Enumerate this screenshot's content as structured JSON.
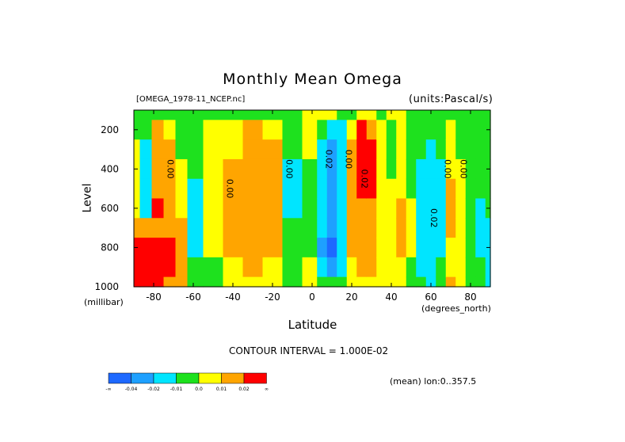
{
  "chart_data": {
    "type": "heatmap",
    "title": "Monthly Mean Omega",
    "file_label": "[OMEGA_1978-11_NCEP.nc]",
    "units_label": "(units:Pascal/s)",
    "xlabel": "Latitude",
    "x_unit": "(degrees_north)",
    "ylabel": "Level",
    "y_unit": "(millibar)",
    "xlim": [
      -90,
      90
    ],
    "ylim": [
      1000,
      100
    ],
    "x_ticks": [
      -80,
      -60,
      -40,
      -20,
      0,
      20,
      40,
      60,
      80
    ],
    "x_tick_labels": [
      "-80",
      "-60",
      "-40",
      "-20",
      "0",
      "20",
      "40",
      "60",
      "80"
    ],
    "y_ticks": [
      200,
      400,
      600,
      800,
      1000
    ],
    "y_tick_labels": [
      "200",
      "400",
      "600",
      "800",
      "1000"
    ],
    "contour_interval": "CONTOUR INTERVAL = 1.000E-02",
    "mean_info": "(mean) lon:0..357.5",
    "colorbar": {
      "colors": [
        "#1e69ff",
        "#1ea0ff",
        "#00e5ff",
        "#1ee11e",
        "#ffff00",
        "#ffa500",
        "#ff0000"
      ],
      "labels": [
        "-∞",
        "-0.04",
        "-0.02",
        "-0.01",
        "0.0",
        "0.01",
        "0.02",
        "∞"
      ]
    },
    "contour_labels": [
      "0.00",
      "0.00",
      "0.00",
      "0.02",
      "0.00",
      "0.02",
      "0.02",
      "0.00",
      "0.00",
      "0.00",
      "0.00"
    ],
    "field": {
      "levels": [
        100,
        200,
        300,
        400,
        500,
        600,
        700,
        800,
        900,
        1000
      ],
      "columns": [
        {
          "lat": -90,
          "values": [
            0,
            0,
            0.5,
            0.5,
            0.5,
            0.5,
            1,
            2,
            3,
            3
          ]
        },
        {
          "lat": -84,
          "values": [
            0,
            0,
            -1,
            -1,
            -1,
            -1,
            1,
            2,
            3,
            3
          ]
        },
        {
          "lat": -78,
          "values": [
            0,
            1,
            1,
            1,
            1,
            2,
            1,
            2,
            3,
            3
          ]
        },
        {
          "lat": -72,
          "values": [
            0,
            0.5,
            1,
            1,
            1,
            1,
            1,
            2,
            2,
            1
          ]
        },
        {
          "lat": -66,
          "values": [
            0,
            0,
            0,
            0.5,
            0.5,
            0.5,
            1,
            1,
            1,
            1
          ]
        },
        {
          "lat": -60,
          "values": [
            0,
            0,
            0,
            0,
            -0.5,
            -0.5,
            -0.5,
            -0.5,
            0,
            0
          ]
        },
        {
          "lat": -50,
          "values": [
            0,
            0.5,
            0.5,
            0.5,
            0.5,
            0.5,
            0.5,
            0.5,
            0,
            0
          ]
        },
        {
          "lat": -40,
          "values": [
            0,
            0.5,
            0.5,
            1,
            1,
            1,
            1,
            1,
            0.5,
            0.5
          ]
        },
        {
          "lat": -30,
          "values": [
            0,
            1,
            1.5,
            1.5,
            1.5,
            1.5,
            1.5,
            1.5,
            1,
            0.5
          ]
        },
        {
          "lat": -20,
          "values": [
            0,
            0.5,
            1,
            1,
            1,
            1,
            1,
            1,
            0.5,
            0.5
          ]
        },
        {
          "lat": -10,
          "values": [
            0,
            0,
            0,
            -0.5,
            -0.5,
            -0.5,
            0,
            0,
            0,
            0
          ]
        },
        {
          "lat": 0,
          "values": [
            0.5,
            0.5,
            0.5,
            0,
            0,
            0,
            0,
            0,
            0.5,
            0.5
          ]
        },
        {
          "lat": 5,
          "values": [
            0.5,
            0,
            -1,
            -1,
            -1,
            -1,
            -1,
            -1.5,
            -1,
            0
          ]
        },
        {
          "lat": 10,
          "values": [
            0.5,
            -1,
            -2,
            -2,
            -2,
            -2,
            -2,
            -3,
            -2,
            0
          ]
        },
        {
          "lat": 15,
          "values": [
            0,
            -0.5,
            -1,
            -1,
            -1,
            -1,
            -1,
            -1,
            -0.5,
            0
          ]
        },
        {
          "lat": 20,
          "values": [
            0,
            0.5,
            1,
            1,
            1,
            1,
            1,
            1,
            0.5,
            0.5
          ]
        },
        {
          "lat": 25,
          "values": [
            0.5,
            2,
            2,
            2,
            2,
            1.5,
            1.5,
            1,
            1,
            0.5
          ]
        },
        {
          "lat": 30,
          "values": [
            0.5,
            1,
            2,
            2,
            2,
            1.5,
            1,
            1,
            1,
            0.5
          ]
        },
        {
          "lat": 35,
          "values": [
            0,
            0.5,
            0.5,
            0.5,
            0.5,
            0.5,
            0.5,
            0.5,
            0.5,
            0.5
          ]
        },
        {
          "lat": 40,
          "values": [
            0.5,
            0,
            0,
            0,
            0.5,
            0.5,
            0.5,
            0.5,
            0.5,
            0.5
          ]
        },
        {
          "lat": 45,
          "values": [
            0.5,
            0.5,
            0.5,
            0.5,
            0.5,
            1,
            1,
            1,
            0.5,
            0.5
          ]
        },
        {
          "lat": 50,
          "values": [
            0,
            0,
            0,
            0,
            0,
            0.5,
            0.5,
            0.5,
            0,
            0
          ]
        },
        {
          "lat": 55,
          "values": [
            0,
            0,
            0,
            -0.5,
            -0.5,
            -0.5,
            -0.5,
            -0.5,
            -0.5,
            0
          ]
        },
        {
          "lat": 60,
          "values": [
            0,
            0,
            -0.5,
            -1,
            -1,
            -1,
            -1,
            -1,
            -1,
            -0.5
          ]
        },
        {
          "lat": 65,
          "values": [
            0,
            0,
            0,
            -0.5,
            -0.5,
            -0.5,
            -0.5,
            -0.5,
            0,
            0
          ]
        },
        {
          "lat": 70,
          "values": [
            0,
            0.5,
            0.5,
            0.5,
            1,
            1,
            1,
            0.5,
            0.5,
            1
          ]
        },
        {
          "lat": 75,
          "values": [
            0,
            0,
            0,
            0.5,
            0.5,
            0.5,
            0.5,
            0.5,
            0.5,
            0.5
          ]
        },
        {
          "lat": 80,
          "values": [
            0,
            0,
            0,
            0,
            0,
            0,
            0,
            0,
            0,
            0
          ]
        },
        {
          "lat": 85,
          "values": [
            0,
            0,
            0,
            0,
            0,
            -0.5,
            -0.5,
            -0.5,
            0,
            0
          ]
        },
        {
          "lat": 90,
          "values": [
            0,
            0,
            0,
            0,
            0,
            0,
            -0.5,
            -0.5,
            -0.5,
            -0.5
          ]
        }
      ]
    }
  }
}
